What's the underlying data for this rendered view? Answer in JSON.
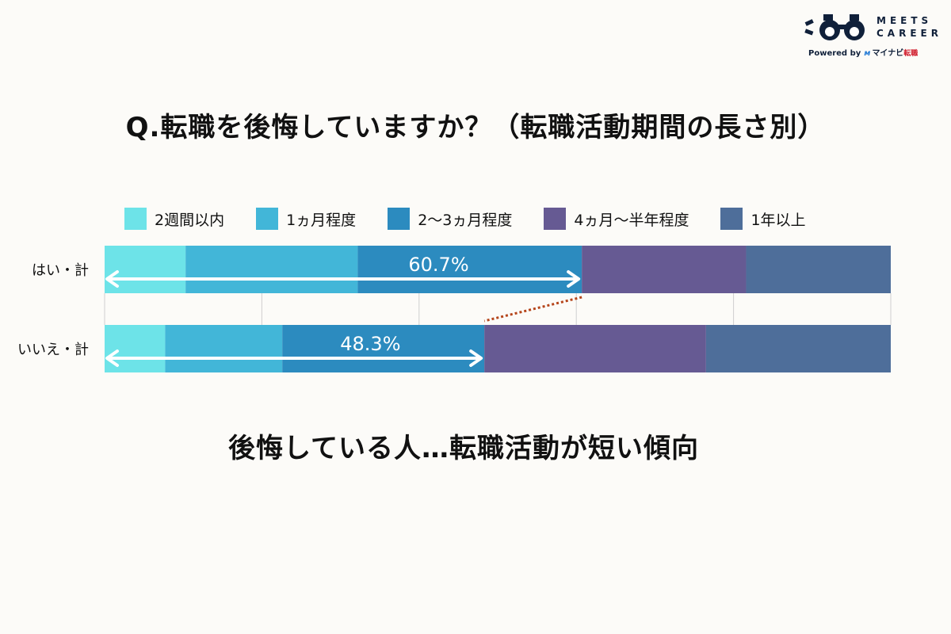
{
  "logo": {
    "line1": "MEETS",
    "line2": "CAREER",
    "powered_by": "Powered by",
    "partner": "マイナビ",
    "partner_suffix": "転職"
  },
  "title": "Q.転職を後悔していますか？（転職活動期間の長さ別）",
  "conclusion": "後悔している人…転職活動が短い傾向",
  "chart_data": {
    "type": "bar",
    "orientation": "horizontal",
    "stacked": true,
    "title": "Q.転職を後悔していますか？（転職活動期間の長さ別）",
    "categories": [
      "はい・計",
      "いいえ・計"
    ],
    "series": [
      {
        "name": "2週間以内",
        "color": "#6de3e8",
        "values": [
          10.3,
          7.7
        ]
      },
      {
        "name": "1ヵ月程度",
        "color": "#42b6d8",
        "values": [
          21.9,
          14.9
        ]
      },
      {
        "name": "2〜3ヵ月程度",
        "color": "#2c8bbf",
        "values": [
          28.5,
          25.7
        ]
      },
      {
        "name": "4ヵ月〜半年程度",
        "color": "#665a93",
        "values": [
          20.9,
          28.2
        ]
      },
      {
        "name": "1年以上",
        "color": "#4e6e9a",
        "values": [
          18.4,
          23.5
        ]
      }
    ],
    "annotations": [
      {
        "category": "はい・計",
        "label": "60.7%",
        "value": 60.7
      },
      {
        "category": "いいえ・計",
        "label": "48.3%",
        "value": 48.3
      }
    ],
    "xlim": [
      0,
      100
    ],
    "grid": true,
    "legend": "top"
  },
  "colors": {
    "arrow": "#ffffff",
    "connector": "#b5451b",
    "grid": "#cfcfcf"
  }
}
